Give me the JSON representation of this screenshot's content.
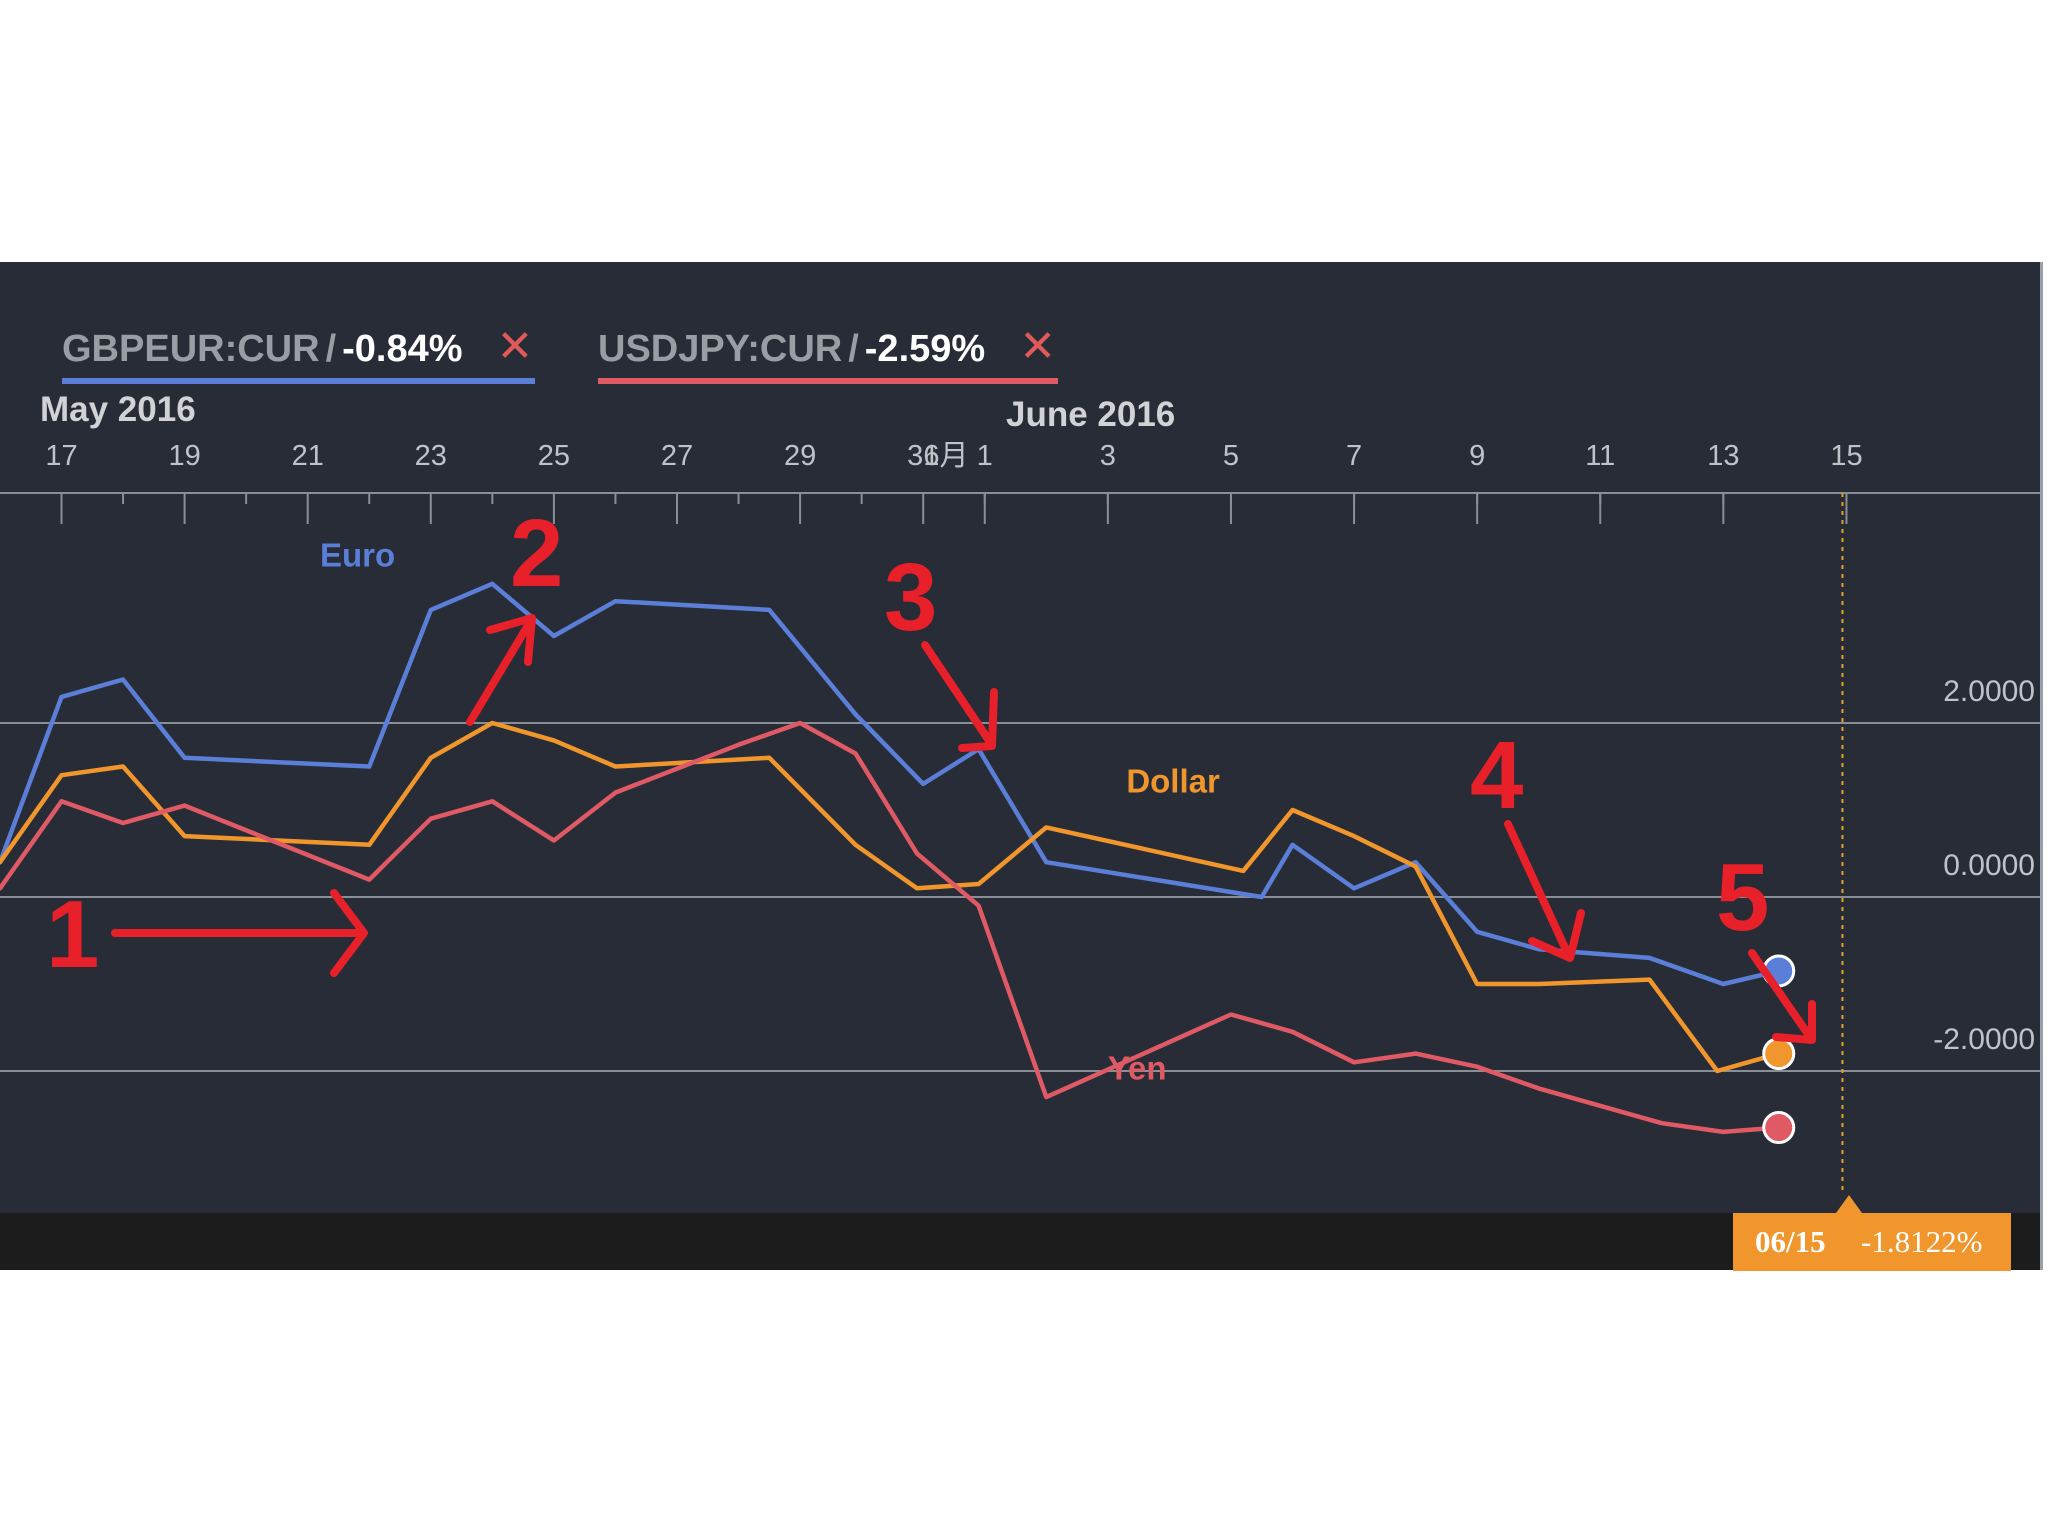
{
  "legend": [
    {
      "symbol": "GBPEUR:CUR",
      "slash": "/",
      "change": "-0.84%",
      "close": "✕",
      "color": "#5b7fd8"
    },
    {
      "symbol": "USDJPY:CUR",
      "slash": "/",
      "change": "-2.59%",
      "close": "✕",
      "color": "#e05a66"
    }
  ],
  "months": {
    "may": "May 2016",
    "june": "June 2016"
  },
  "tooltip": {
    "date": "06/15",
    "value": "-1.8122%"
  },
  "chart_data": {
    "type": "line",
    "x_ticks": [
      "17",
      "19",
      "21",
      "23",
      "25",
      "27",
      "29",
      "31",
      "6月 1",
      "3",
      "5",
      "7",
      "9",
      "11",
      "13",
      "15"
    ],
    "y_ticks": [
      "2.0000",
      "0.0000",
      "-2.0000"
    ],
    "ylim": [
      -3.6,
      4.6
    ],
    "grid": true,
    "series": [
      {
        "name": "Euro",
        "color": "#5b7fd8",
        "label_pos": [
          21.2,
          3.8
        ],
        "points": [
          [
            15,
            0
          ],
          [
            16,
            0.4
          ],
          [
            17,
            2.3
          ],
          [
            18,
            2.5
          ],
          [
            19,
            1.6
          ],
          [
            22,
            1.5
          ],
          [
            23,
            3.3
          ],
          [
            24,
            3.6
          ],
          [
            25,
            3.0
          ],
          [
            26,
            3.4
          ],
          [
            28.5,
            3.3
          ],
          [
            29.9,
            2.1
          ],
          [
            31,
            1.3
          ],
          [
            31.9,
            1.7
          ],
          [
            33,
            0.4
          ],
          [
            36.5,
            0
          ],
          [
            37,
            0.6
          ],
          [
            38,
            0.1
          ],
          [
            39,
            0.4
          ],
          [
            40,
            -0.4
          ],
          [
            41,
            -0.6
          ],
          [
            42.8,
            -0.7
          ],
          [
            44,
            -1.0
          ],
          [
            44.9,
            -0.85
          ]
        ]
      },
      {
        "name": "Dollar",
        "color": "#f0962d",
        "label_pos": [
          34.3,
          1.2
        ],
        "points": [
          [
            15,
            0
          ],
          [
            16,
            0.4
          ],
          [
            17,
            1.4
          ],
          [
            18,
            1.5
          ],
          [
            19,
            0.7
          ],
          [
            22,
            0.6
          ],
          [
            23,
            1.6
          ],
          [
            24,
            2.0
          ],
          [
            25,
            1.8
          ],
          [
            26,
            1.5
          ],
          [
            28.5,
            1.6
          ],
          [
            29.9,
            0.6
          ],
          [
            30.9,
            0.1
          ],
          [
            31.9,
            0.15
          ],
          [
            33,
            0.8
          ],
          [
            36.2,
            0.3
          ],
          [
            37,
            1.0
          ],
          [
            38,
            0.7
          ],
          [
            39,
            0.35
          ],
          [
            40,
            -1.0
          ],
          [
            41,
            -1.0
          ],
          [
            42.8,
            -0.95
          ],
          [
            43.9,
            -2.0
          ],
          [
            44.9,
            -1.8
          ]
        ]
      },
      {
        "name": "Yen",
        "color": "#e05a66",
        "label_pos": [
          34.0,
          -2.1
        ],
        "points": [
          [
            15,
            0
          ],
          [
            16,
            0.1
          ],
          [
            17,
            1.1
          ],
          [
            18,
            0.85
          ],
          [
            19,
            1.05
          ],
          [
            22,
            0.2
          ],
          [
            23,
            0.9
          ],
          [
            24,
            1.1
          ],
          [
            25,
            0.65
          ],
          [
            26,
            1.2
          ],
          [
            28,
            1.75
          ],
          [
            29,
            2.0
          ],
          [
            29.9,
            1.65
          ],
          [
            30.9,
            0.5
          ],
          [
            31.9,
            -0.1
          ],
          [
            33,
            -2.3
          ],
          [
            36,
            -1.35
          ],
          [
            37,
            -1.55
          ],
          [
            38,
            -1.9
          ],
          [
            39,
            -1.8
          ],
          [
            40,
            -1.95
          ],
          [
            41,
            -2.2
          ],
          [
            43,
            -2.6
          ],
          [
            44,
            -2.7
          ],
          [
            44.9,
            -2.65
          ]
        ]
      }
    ],
    "annotations": [
      {
        "text": "1",
        "color": "#e8202a"
      },
      {
        "text": "2",
        "color": "#e8202a"
      },
      {
        "text": "3",
        "color": "#e8202a"
      },
      {
        "text": "4",
        "color": "#e8202a"
      },
      {
        "text": "5",
        "color": "#e8202a"
      }
    ]
  }
}
